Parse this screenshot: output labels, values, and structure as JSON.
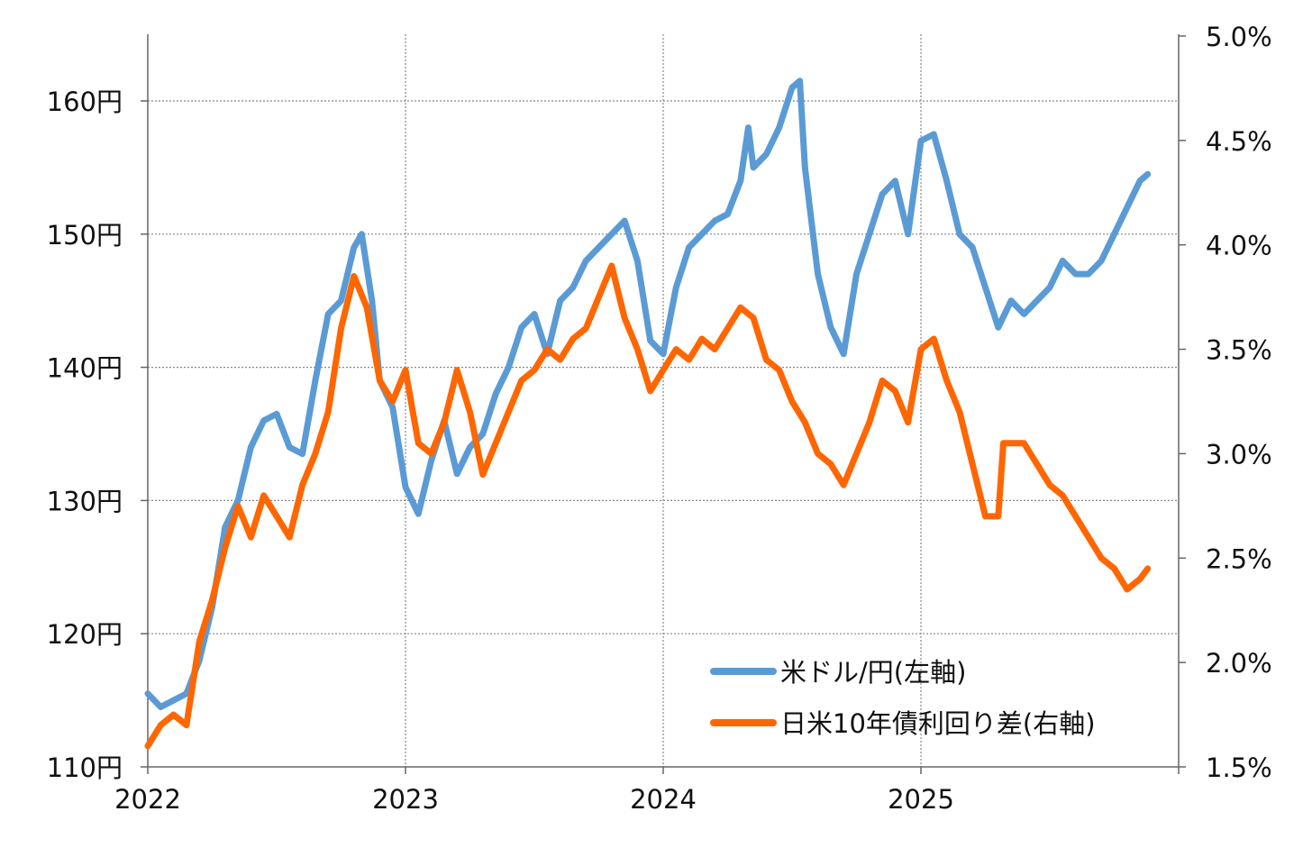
{
  "chart_data": {
    "type": "line",
    "title": "",
    "xlabel": "",
    "ylabel_left": "",
    "ylabel_right": "",
    "x_ticks": [
      "2022",
      "2023",
      "2024",
      "2025"
    ],
    "xlim": [
      2022,
      2026
    ],
    "y_left": {
      "lim": [
        110,
        165
      ],
      "ticks": [
        110,
        120,
        130,
        140,
        150,
        160
      ],
      "tick_labels": [
        "110円",
        "120円",
        "130円",
        "140円",
        "150円",
        "160円"
      ]
    },
    "y_right": {
      "lim": [
        1.5,
        5.0
      ],
      "ticks": [
        1.5,
        2.0,
        2.5,
        3.0,
        3.5,
        4.0,
        4.5,
        5.0
      ],
      "tick_labels": [
        "1.5%",
        "2.0%",
        "2.5%",
        "3.0%",
        "3.5%",
        "4.0%",
        "4.5%",
        "5.0%"
      ]
    },
    "grid": true,
    "legend_position": "bottom-right",
    "colors": {
      "usdjpy": "#5B9BD5",
      "spread": "#FF6600"
    },
    "series": [
      {
        "name": "米ドル/円(左軸)",
        "axis": "left",
        "x": [
          2022.0,
          2022.05,
          2022.1,
          2022.15,
          2022.2,
          2022.25,
          2022.3,
          2022.35,
          2022.4,
          2022.45,
          2022.5,
          2022.55,
          2022.6,
          2022.65,
          2022.7,
          2022.75,
          2022.8,
          2022.83,
          2022.87,
          2022.9,
          2022.95,
          2023.0,
          2023.05,
          2023.1,
          2023.15,
          2023.2,
          2023.25,
          2023.3,
          2023.35,
          2023.4,
          2023.45,
          2023.5,
          2023.55,
          2023.6,
          2023.65,
          2023.7,
          2023.75,
          2023.8,
          2023.85,
          2023.9,
          2023.95,
          2024.0,
          2024.05,
          2024.1,
          2024.15,
          2024.2,
          2024.25,
          2024.3,
          2024.33,
          2024.35,
          2024.4,
          2024.45,
          2024.5,
          2024.53,
          2024.55,
          2024.6,
          2024.65,
          2024.7,
          2024.75,
          2024.8,
          2024.85,
          2024.9,
          2024.95,
          2025.0,
          2025.05,
          2025.1,
          2025.15,
          2025.2,
          2025.25,
          2025.3,
          2025.35,
          2025.4,
          2025.45,
          2025.5,
          2025.55,
          2025.6,
          2025.65,
          2025.7,
          2025.75,
          2025.8,
          2025.85,
          2025.88
        ],
        "values": [
          115.5,
          114.5,
          115,
          115.5,
          118,
          122,
          128,
          130,
          134,
          136,
          136.5,
          134,
          133.5,
          139,
          144,
          145,
          149,
          150,
          145,
          139,
          137,
          131,
          129,
          133,
          136,
          132,
          134,
          135,
          138,
          140,
          143,
          144,
          141,
          145,
          146,
          148,
          149,
          150,
          151,
          148,
          142,
          141,
          146,
          149,
          150,
          151,
          151.5,
          154,
          158,
          155,
          156,
          158,
          161,
          161.5,
          155,
          147,
          143,
          141,
          147,
          150,
          153,
          154,
          150,
          157,
          157.5,
          154,
          150,
          149,
          146,
          143,
          145,
          144,
          145,
          146,
          148,
          147,
          147,
          148,
          150,
          152,
          154,
          154.5
        ]
      },
      {
        "name": "日米10年債利回り差(右軸)",
        "axis": "right",
        "x": [
          2022.0,
          2022.05,
          2022.1,
          2022.15,
          2022.2,
          2022.25,
          2022.3,
          2022.35,
          2022.4,
          2022.45,
          2022.5,
          2022.55,
          2022.6,
          2022.65,
          2022.7,
          2022.75,
          2022.8,
          2022.85,
          2022.9,
          2022.95,
          2023.0,
          2023.05,
          2023.1,
          2023.15,
          2023.2,
          2023.25,
          2023.3,
          2023.35,
          2023.4,
          2023.45,
          2023.5,
          2023.55,
          2023.6,
          2023.65,
          2023.7,
          2023.75,
          2023.8,
          2023.85,
          2023.9,
          2023.95,
          2024.0,
          2024.05,
          2024.1,
          2024.15,
          2024.2,
          2024.25,
          2024.3,
          2024.35,
          2024.4,
          2024.45,
          2024.5,
          2024.55,
          2024.6,
          2024.65,
          2024.7,
          2024.75,
          2024.8,
          2024.85,
          2024.9,
          2024.95,
          2025.0,
          2025.05,
          2025.1,
          2025.15,
          2025.2,
          2025.25,
          2025.3,
          2025.32,
          2025.35,
          2025.4,
          2025.45,
          2025.5,
          2025.55,
          2025.6,
          2025.65,
          2025.7,
          2025.75,
          2025.8,
          2025.85,
          2025.88
        ],
        "values": [
          1.6,
          1.7,
          1.75,
          1.7,
          2.1,
          2.3,
          2.55,
          2.75,
          2.6,
          2.8,
          2.7,
          2.6,
          2.85,
          3.0,
          3.2,
          3.6,
          3.85,
          3.7,
          3.35,
          3.25,
          3.4,
          3.05,
          3.0,
          3.15,
          3.4,
          3.2,
          2.9,
          3.05,
          3.2,
          3.35,
          3.4,
          3.5,
          3.45,
          3.55,
          3.6,
          3.75,
          3.9,
          3.65,
          3.5,
          3.3,
          3.4,
          3.5,
          3.45,
          3.55,
          3.5,
          3.6,
          3.7,
          3.65,
          3.45,
          3.4,
          3.25,
          3.15,
          3.0,
          2.95,
          2.85,
          3.0,
          3.15,
          3.35,
          3.3,
          3.15,
          3.5,
          3.55,
          3.35,
          3.2,
          2.95,
          2.7,
          2.7,
          3.05,
          3.05,
          3.05,
          2.95,
          2.85,
          2.8,
          2.7,
          2.6,
          2.5,
          2.45,
          2.35,
          2.4,
          2.45
        ]
      }
    ]
  }
}
